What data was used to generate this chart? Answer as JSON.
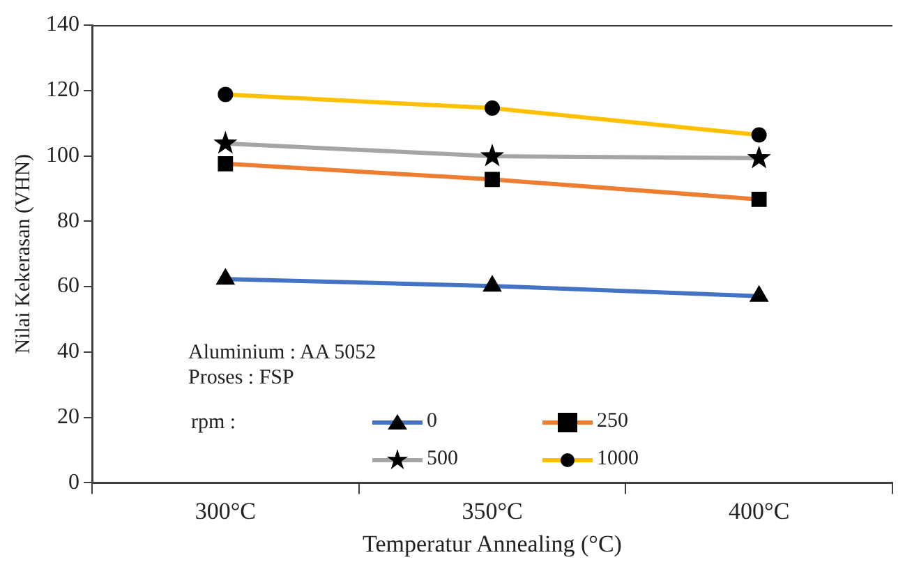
{
  "chart_data": {
    "type": "line",
    "xlabel": "Temperatur Annealing (°C)",
    "ylabel": "Nilai Kekerasan (VHN)",
    "categories": [
      "300°C",
      "350°C",
      "400°C"
    ],
    "series": [
      {
        "name": "0",
        "color": "#4472c4",
        "marker": "triangle",
        "values": [
          62.3,
          60.2,
          57.1
        ]
      },
      {
        "name": "250",
        "color": "#ed7d31",
        "marker": "square",
        "values": [
          97.6,
          92.8,
          86.7
        ]
      },
      {
        "name": "500",
        "color": "#a5a5a5",
        "marker": "star",
        "values": [
          103.8,
          99.9,
          99.3
        ]
      },
      {
        "name": "1000",
        "color": "#ffc000",
        "marker": "circle",
        "values": [
          118.8,
          114.6,
          106.4
        ]
      }
    ],
    "ylim": [
      0,
      140
    ],
    "yticks": [
      0,
      20,
      40,
      60,
      80,
      100,
      120,
      140
    ],
    "grid": false,
    "legend": "bottom left",
    "legend_title": "rpm :",
    "annotations": [
      "Aluminium : AA 5052",
      "Proses : FSP"
    ]
  }
}
